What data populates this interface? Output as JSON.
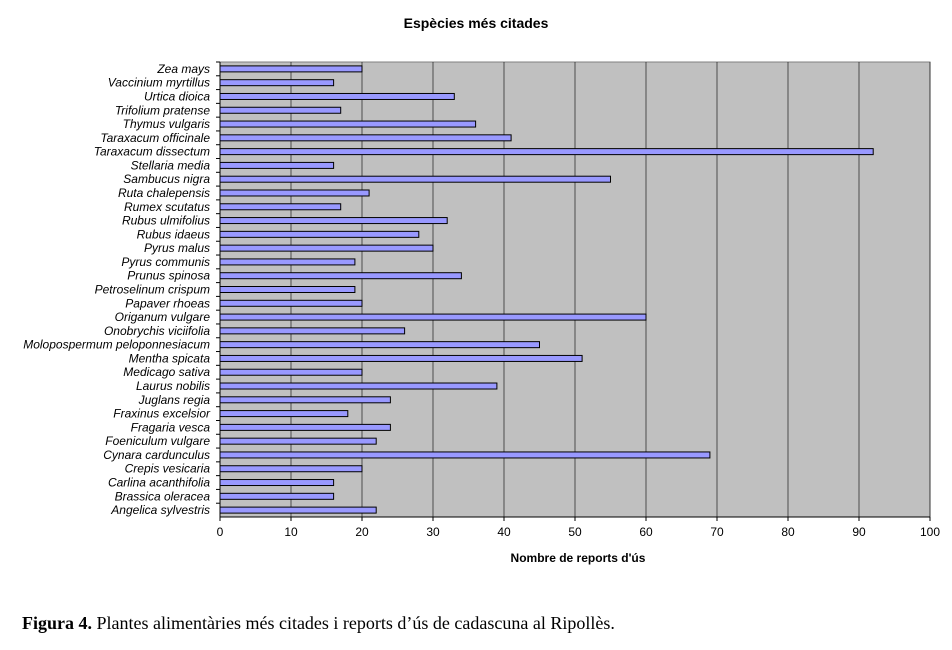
{
  "chart_data": {
    "type": "bar",
    "orientation": "horizontal",
    "title": "Espècies més citades",
    "xlabel": "Nombre de reports d'ús",
    "ylabel": "",
    "xlim": [
      0,
      100
    ],
    "xticks": [
      0,
      10,
      20,
      30,
      40,
      50,
      60,
      70,
      80,
      90,
      100
    ],
    "grid": true,
    "legend": "none",
    "categories": [
      "Zea mays",
      "Vaccinium myrtillus",
      "Urtica dioica",
      "Trifolium pratense",
      "Thymus vulgaris",
      "Taraxacum officinale",
      "Taraxacum dissectum",
      "Stellaria media",
      "Sambucus nigra",
      "Ruta chalepensis",
      "Rumex scutatus",
      "Rubus ulmifolius",
      "Rubus idaeus",
      "Pyrus malus",
      "Pyrus communis",
      "Prunus spinosa",
      "Petroselinum crispum",
      "Papaver rhoeas",
      "Origanum vulgare",
      "Onobrychis viciifolia",
      "Molopospermum peloponnesiacum",
      "Mentha spicata",
      "Medicago sativa",
      "Laurus nobilis",
      "Juglans regia",
      "Fraxinus excelsior",
      "Fragaria vesca",
      "Foeniculum vulgare",
      "Cynara cardunculus",
      "Crepis vesicaria",
      "Carlina acanthifolia",
      "Brassica oleracea",
      "Angelica sylvestris"
    ],
    "values": [
      20,
      16,
      33,
      17,
      36,
      41,
      92,
      16,
      55,
      21,
      17,
      32,
      28,
      30,
      19,
      34,
      19,
      20,
      60,
      26,
      45,
      51,
      20,
      39,
      24,
      18,
      24,
      22,
      69,
      20,
      16,
      16,
      22
    ],
    "colors": {
      "plot_background": "#c0c0c0",
      "bar_fill": "#9999ff",
      "bar_stroke": "#000000",
      "gridline": "#000000"
    }
  },
  "caption": {
    "label": "Figura 4.",
    "text": " Plantes alimentàries més citades i reports d’ús de cadascuna al Ripollès."
  }
}
